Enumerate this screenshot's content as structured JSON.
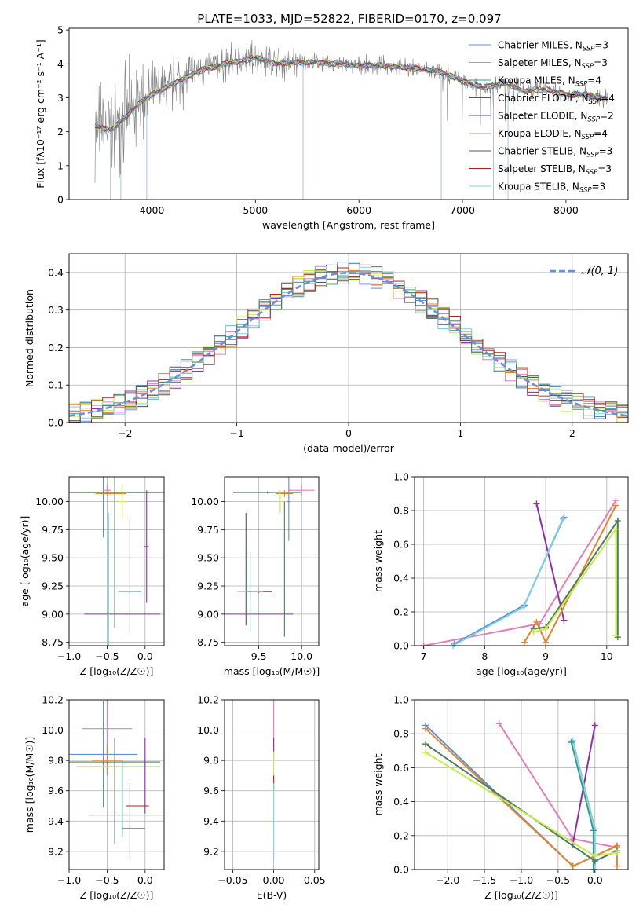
{
  "page_title": "PLATE=1033, MJD=52822, FIBERID=0170, z=0.097",
  "colors": {
    "Chabrier MILES": "#5b8fd6",
    "Salpeter MILES": "#e8822b",
    "Kroupa MILES": "#2f9d8f",
    "Chabrier ELODIE": "#4e7d5e",
    "Salpeter ELODIE": "#8e2fa6",
    "Kroupa ELODIE": "#c9ea4a",
    "Chabrier STELIB": "#555555",
    "Salpeter STELIB": "#b51f1f",
    "Kroupa STELIB": "#7fd0de",
    "pink": "#e27fb8",
    "grey_data": "#808080",
    "gauss": "#6b8fd6"
  },
  "chart_data": [
    {
      "type": "line",
      "id": "spectrum",
      "title": "PLATE=1033, MJD=52822, FIBERID=0170, z=0.097",
      "xlabel": "wavelength [Angstrom, rest frame]",
      "ylabel": "Flux [fλ10⁻¹⁷ erg cm⁻² s⁻¹ A⁻¹]",
      "xlim": [
        3200,
        8600
      ],
      "ylim": [
        0,
        5.05
      ],
      "xticks": [
        4000,
        5000,
        6000,
        7000,
        8000
      ],
      "yticks": [
        0,
        1,
        2,
        3,
        4,
        5
      ],
      "legend_position": "right",
      "legend": [
        {
          "label": "Chabrier MILES, N",
          "sub": "SSP",
          "suffix": "=3",
          "color": "#5b8fd6"
        },
        {
          "label": "Salpeter MILES, N",
          "sub": "SSP",
          "suffix": "=3",
          "color": "#e27fb8"
        },
        {
          "label": "Kroupa MILES, N",
          "sub": "SSP",
          "suffix": "=4",
          "color": "#2f9d8f"
        },
        {
          "label": "Chabrier ELODIE, N",
          "sub": "SSP",
          "suffix": "=4",
          "color": "#555555"
        },
        {
          "label": "Salpeter ELODIE, N",
          "sub": "SSP",
          "suffix": "=2",
          "color": "#8e2fa6"
        },
        {
          "label": "Kroupa ELODIE, N",
          "sub": "SSP",
          "suffix": "=4",
          "color": "#c9ea4a"
        },
        {
          "label": "Chabrier STELIB, N",
          "sub": "SSP",
          "suffix": "=3",
          "color": "#555555"
        },
        {
          "label": "Salpeter STELIB, N",
          "sub": "SSP",
          "suffix": "=3",
          "color": "#b51f1f"
        },
        {
          "label": "Kroupa STELIB, N",
          "sub": "SSP",
          "suffix": "=3",
          "color": "#7fd0de"
        }
      ],
      "continuum": [
        [
          3450,
          2.15
        ],
        [
          3600,
          2.05
        ],
        [
          3700,
          2.3
        ],
        [
          3800,
          2.6
        ],
        [
          3900,
          2.9
        ],
        [
          4000,
          3.1
        ],
        [
          4100,
          3.25
        ],
        [
          4200,
          3.4
        ],
        [
          4300,
          3.55
        ],
        [
          4400,
          3.7
        ],
        [
          4500,
          3.85
        ],
        [
          4600,
          3.9
        ],
        [
          4700,
          4.0
        ],
        [
          4800,
          4.05
        ],
        [
          4900,
          4.1
        ],
        [
          5000,
          4.2
        ],
        [
          5200,
          4.0
        ],
        [
          5400,
          4.05
        ],
        [
          5600,
          4.05
        ],
        [
          5800,
          4.0
        ],
        [
          6000,
          3.95
        ],
        [
          6200,
          3.95
        ],
        [
          6400,
          3.9
        ],
        [
          6600,
          3.85
        ],
        [
          6800,
          3.75
        ],
        [
          7000,
          3.5
        ],
        [
          7200,
          3.3
        ],
        [
          7400,
          3.45
        ],
        [
          7600,
          3.2
        ],
        [
          7800,
          3.25
        ],
        [
          8000,
          3.1
        ],
        [
          8200,
          3.1
        ],
        [
          8400,
          2.95
        ]
      ]
    },
    {
      "type": "line",
      "id": "residuals",
      "xlabel": "(data-model)/error",
      "ylabel": "Normed distribution",
      "xlim": [
        -2.5,
        2.5
      ],
      "ylim": [
        0,
        0.45
      ],
      "xticks": [
        -2,
        -1,
        0,
        1,
        2
      ],
      "yticks": [
        0.0,
        0.1,
        0.2,
        0.3,
        0.4
      ],
      "legend": "𝒩(0, 1)",
      "legend_position": "top-right",
      "bin_width": 0.1
    },
    {
      "type": "scatter",
      "id": "age_vs_Z",
      "xlabel": "Z [log₁₀(Z/Z☉)]",
      "ylabel": "age  [log₁₀(age/yr)]",
      "xlim": [
        -1.0,
        0.25
      ],
      "ylim": [
        8.72,
        10.22
      ],
      "xticks": [
        -1.0,
        -0.5,
        0.0
      ],
      "yticks": [
        8.75,
        9.0,
        9.25,
        9.5,
        9.75,
        10.0
      ],
      "points": [
        {
          "color": "#5b8fd6",
          "x": -0.55,
          "xerr": 0.75,
          "y": 10.08,
          "yerr": 0.4
        },
        {
          "color": "#e27fb8",
          "x": -0.5,
          "xerr": 0.05,
          "y": 10.1,
          "yerr": 0.05
        },
        {
          "color": "#e8822b",
          "x": -0.45,
          "xerr": 0.2,
          "y": 10.07,
          "yerr": 0.02
        },
        {
          "color": "#4e7d5e",
          "x": -0.4,
          "xerr": 0.65,
          "y": 10.08,
          "yerr": 1.2
        },
        {
          "color": "#c9ea4a",
          "x": -0.3,
          "xerr": 0.05,
          "y": 10.0,
          "yerr": 0.15
        },
        {
          "color": "#8e2fa6",
          "x": 0.02,
          "xerr": 0.03,
          "y": 9.6,
          "yerr": 0.5
        },
        {
          "color": "#8e2fa6",
          "x": -0.3,
          "xerr": 0.5,
          "y": 9.0,
          "yerr": 0.0
        },
        {
          "color": "#555555",
          "x": -0.2,
          "xerr": 0.0,
          "y": 9.35,
          "yerr": 0.5
        },
        {
          "color": "#2f9d8f",
          "x": -0.2,
          "xerr": 0.15,
          "y": 9.2,
          "yerr": 0.01
        },
        {
          "color": "#7fd0de",
          "x": -0.2,
          "xerr": 0.15,
          "y": 9.2,
          "yerr": 0.01
        },
        {
          "color": "#7fd0de",
          "x": -0.48,
          "xerr": 0.0,
          "y": 9.3,
          "yerr": 0.6
        }
      ]
    },
    {
      "type": "scatter",
      "id": "age_vs_mass",
      "xlabel": "mass [log₁₀(M/M☉)]",
      "ylabel": "",
      "xlim": [
        9.1,
        10.2
      ],
      "ylim": [
        8.72,
        10.22
      ],
      "xticks": [
        9.5,
        10.0
      ],
      "yticks": [
        8.75,
        9.0,
        9.25,
        9.5,
        9.75,
        10.0
      ],
      "points": [
        {
          "color": "#4e7d5e",
          "x": 9.6,
          "xerr": 0.4,
          "y": 10.08,
          "yerr": 0.01
        },
        {
          "color": "#e27fb8",
          "x": 10.0,
          "xerr": 0.15,
          "y": 10.1,
          "yerr": 0.05
        },
        {
          "color": "#e8822b",
          "x": 9.8,
          "xerr": 0.1,
          "y": 10.07,
          "yerr": 0.03
        },
        {
          "color": "#c9ea4a",
          "x": 9.75,
          "xerr": 0.02,
          "y": 10.0,
          "yerr": 0.1
        },
        {
          "color": "#5b8fd6",
          "x": 9.85,
          "xerr": 0.02,
          "y": 10.0,
          "yerr": 0.35
        },
        {
          "color": "#8e2fa6",
          "x": 9.45,
          "xerr": 0.45,
          "y": 9.0,
          "yerr": 0.0
        },
        {
          "color": "#4e7d5e",
          "x": 9.8,
          "xerr": 0.0,
          "y": 9.4,
          "yerr": 0.6
        },
        {
          "color": "#b51f1f",
          "x": 9.5,
          "xerr": 0.15,
          "y": 9.2,
          "yerr": 0.01
        },
        {
          "color": "#555555",
          "x": 9.35,
          "xerr": 0.0,
          "y": 9.4,
          "yerr": 0.5
        },
        {
          "color": "#7fd0de",
          "x": 9.4,
          "xerr": 0.15,
          "y": 9.2,
          "yerr": 0.35
        }
      ]
    },
    {
      "type": "line",
      "id": "mass_weight_vs_age",
      "xlabel": "age  [log₁₀(age/yr)]",
      "ylabel": "mass weight",
      "xlim": [
        6.85,
        10.35
      ],
      "ylim": [
        0,
        1.0
      ],
      "xticks": [
        7,
        8,
        9,
        10
      ],
      "yticks": [
        0.0,
        0.2,
        0.4,
        0.6,
        0.8,
        1.0
      ],
      "series": [
        {
          "color": "#e27fb8",
          "x": [
            7.0,
            8.9,
            10.15
          ],
          "y": [
            0.0,
            0.13,
            0.86
          ]
        },
        {
          "color": "#8e2fa6",
          "x": [
            8.85,
            9.3
          ],
          "y": [
            0.84,
            0.15
          ]
        },
        {
          "color": "#5b8fd6",
          "x": [
            7.5,
            8.65,
            9.3
          ],
          "y": [
            0.01,
            0.24,
            0.76
          ]
        },
        {
          "color": "#7fd0de",
          "x": [
            7.48,
            8.64,
            9.28
          ],
          "y": [
            0.0,
            0.23,
            0.75
          ]
        },
        {
          "color": "#e8822b",
          "x": [
            8.65,
            8.85,
            9.0,
            10.15
          ],
          "y": [
            0.02,
            0.14,
            0.02,
            0.83
          ]
        },
        {
          "color": "#4e7d5e",
          "x": [
            8.8,
            9.0,
            10.18,
            10.18
          ],
          "y": [
            0.1,
            0.11,
            0.74,
            0.05
          ]
        },
        {
          "color": "#c9ea4a",
          "x": [
            8.8,
            9.0,
            10.15,
            10.15
          ],
          "y": [
            0.08,
            0.1,
            0.69,
            0.06
          ]
        }
      ]
    },
    {
      "type": "scatter",
      "id": "mass_vs_Z",
      "xlabel": "Z [log₁₀(Z/Z☉)]",
      "ylabel": "mass [log₁₀(M/M☉)]",
      "xlim": [
        -1.0,
        0.25
      ],
      "ylim": [
        9.08,
        10.2
      ],
      "xticks": [
        -1.0,
        -0.5,
        0.0
      ],
      "yticks": [
        9.2,
        9.4,
        9.6,
        9.8,
        10.0,
        10.2
      ],
      "points": [
        {
          "color": "#e27fb8",
          "x": -0.5,
          "xerr": 0.33,
          "y": 10.01,
          "yerr": 0.2
        },
        {
          "color": "#5b8fd6",
          "x": -0.55,
          "xerr": 0.45,
          "y": 9.84,
          "yerr": 0.35
        },
        {
          "color": "#e8822b",
          "x": -0.5,
          "xerr": 0.2,
          "y": 9.8,
          "yerr": 0.1
        },
        {
          "color": "#4e7d5e",
          "x": -0.4,
          "xerr": 0.6,
          "y": 9.79,
          "yerr": 0.0
        },
        {
          "color": "#c9ea4a",
          "x": -0.35,
          "xerr": 0.55,
          "y": 9.76,
          "yerr": 0.0
        },
        {
          "color": "#8e2fa6",
          "x": -0.25,
          "xerr": 0.5,
          "y": 9.44,
          "yerr": 0.0
        },
        {
          "color": "#8e2fa6",
          "x": 0.0,
          "xerr": 0.0,
          "y": 9.7,
          "yerr": 0.25
        },
        {
          "color": "#b51f1f",
          "x": -0.1,
          "xerr": 0.15,
          "y": 9.5,
          "yerr": 0.0
        },
        {
          "color": "#555555",
          "x": -0.15,
          "xerr": 0.15,
          "y": 9.35,
          "yerr": 0.0
        },
        {
          "color": "#555555",
          "x": -0.2,
          "xerr": 0.0,
          "y": 9.4,
          "yerr": 0.25
        },
        {
          "color": "#4e7d5e",
          "x": -0.4,
          "xerr": 0.0,
          "y": 9.6,
          "yerr": 0.35
        },
        {
          "color": "#2f9d8f",
          "x": -0.3,
          "xerr": 0.0,
          "y": 9.55,
          "yerr": 0.25
        }
      ]
    },
    {
      "type": "scatter",
      "id": "mass_vs_ebv",
      "xlabel": "E(B-V)",
      "ylabel": "",
      "xlim": [
        -0.06,
        0.055
      ],
      "ylim": [
        9.08,
        10.2
      ],
      "xticks": [
        -0.05,
        0.0,
        0.05
      ],
      "yticks": [
        9.2,
        9.4,
        9.6,
        9.8,
        10.0,
        10.2
      ],
      "points": [
        {
          "color": "#e27fb8",
          "x": 0.0,
          "xerr": 0.0,
          "y": 10.01,
          "yerr": 0.2
        },
        {
          "color": "#8e2fa6",
          "x": 0.0,
          "xerr": 0.0,
          "y": 9.9,
          "yerr": 0.05
        },
        {
          "color": "#c9ea4a",
          "x": 0.0,
          "xerr": 0.0,
          "y": 9.78,
          "yerr": 0.08
        },
        {
          "color": "#b51f1f",
          "x": 0.0,
          "xerr": 0.0,
          "y": 9.65,
          "yerr": 0.05
        },
        {
          "color": "#7fd0de",
          "x": 0.0,
          "xerr": 0.0,
          "y": 9.4,
          "yerr": 0.25
        }
      ]
    },
    {
      "type": "line",
      "id": "mass_weight_vs_Z",
      "xlabel": "Z [log₁₀(Z/Z☉)]",
      "ylabel": "mass weight",
      "xlim": [
        -2.45,
        0.45
      ],
      "ylim": [
        0,
        1.0
      ],
      "xticks": [
        -2.0,
        -1.5,
        -1.0,
        -0.5,
        0.0
      ],
      "yticks": [
        0.0,
        0.2,
        0.4,
        0.6,
        0.8,
        1.0
      ],
      "series": [
        {
          "color": "#e27fb8",
          "x": [
            -1.3,
            -0.3,
            0.3
          ],
          "y": [
            0.86,
            0.18,
            0.13
          ]
        },
        {
          "color": "#8e2fa6",
          "x": [
            -0.3,
            0.0
          ],
          "y": [
            0.15,
            0.85
          ]
        },
        {
          "color": "#5b8fd6",
          "x": [
            -2.3,
            -0.3,
            0.3
          ],
          "y": [
            0.85,
            0.02,
            0.14
          ]
        },
        {
          "color": "#7fd0de",
          "x": [
            -0.3,
            0.0,
            0.0
          ],
          "y": [
            0.76,
            0.24,
            0.0
          ]
        },
        {
          "color": "#2f9d8f",
          "x": [
            -0.32,
            -0.02,
            -0.02
          ],
          "y": [
            0.75,
            0.23,
            0.0
          ]
        },
        {
          "color": "#e8822b",
          "x": [
            -2.3,
            -0.3,
            0.3,
            0.3
          ],
          "y": [
            0.83,
            0.02,
            0.14,
            0.02
          ]
        },
        {
          "color": "#4e7d5e",
          "x": [
            -2.3,
            0.0,
            0.3
          ],
          "y": [
            0.74,
            0.05,
            0.11
          ]
        },
        {
          "color": "#c9ea4a",
          "x": [
            -2.3,
            0.0,
            0.3
          ],
          "y": [
            0.69,
            0.08,
            0.1
          ]
        }
      ]
    }
  ]
}
